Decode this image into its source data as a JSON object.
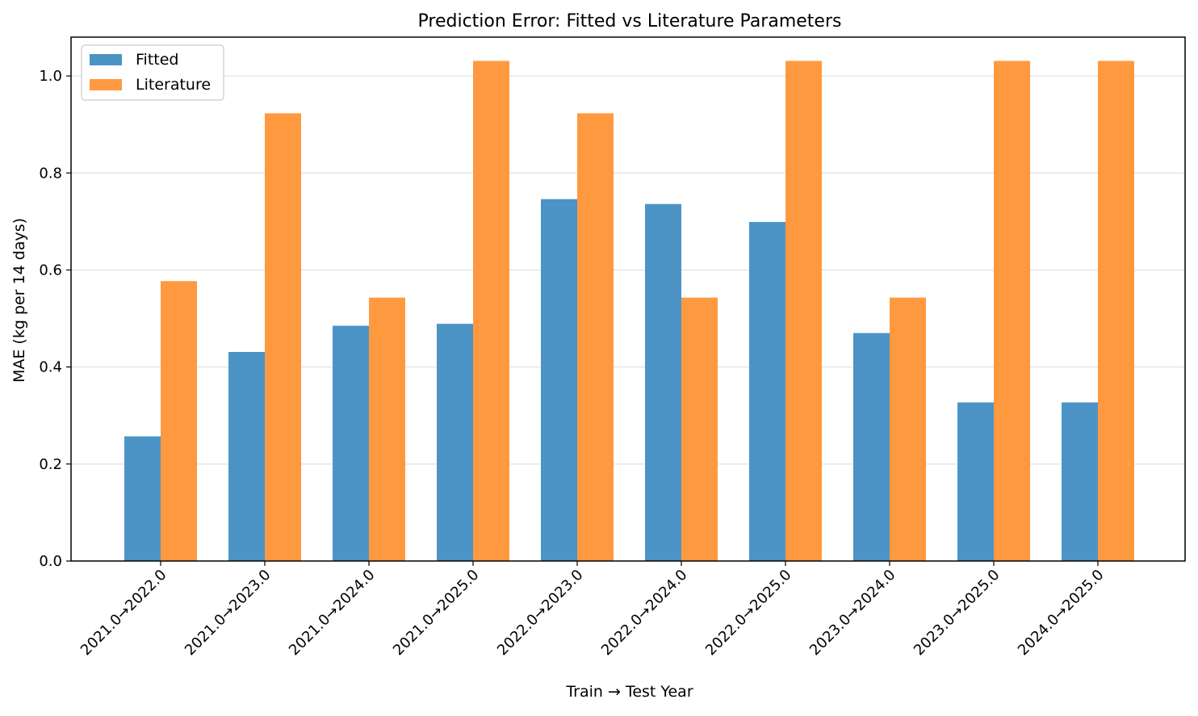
{
  "chart_data": {
    "type": "bar",
    "title": "Prediction Error: Fitted vs Literature Parameters",
    "xlabel": "Train → Test Year",
    "ylabel": "MAE (kg per 14 days)",
    "ylim": [
      0,
      1.08
    ],
    "yticks": [
      0.0,
      0.2,
      0.4,
      0.6,
      0.8,
      1.0
    ],
    "ytick_labels": [
      "0.0",
      "0.2",
      "0.4",
      "0.6",
      "0.8",
      "1.0"
    ],
    "grid": "horizontal",
    "legend_position": "top-left",
    "categories": [
      "2021.0→2022.0",
      "2021.0→2023.0",
      "2021.0→2024.0",
      "2021.0→2025.0",
      "2022.0→2023.0",
      "2022.0→2024.0",
      "2022.0→2025.0",
      "2023.0→2024.0",
      "2023.0→2025.0",
      "2024.0→2025.0"
    ],
    "series": [
      {
        "name": "Fitted",
        "color": "#4c93c6",
        "values": [
          0.257,
          0.431,
          0.485,
          0.489,
          0.746,
          0.736,
          0.699,
          0.47,
          0.327,
          0.327
        ]
      },
      {
        "name": "Literature",
        "color": "#ff9940",
        "values": [
          0.577,
          0.923,
          0.543,
          1.031,
          0.923,
          0.543,
          1.031,
          0.543,
          1.031,
          1.031
        ]
      }
    ]
  }
}
